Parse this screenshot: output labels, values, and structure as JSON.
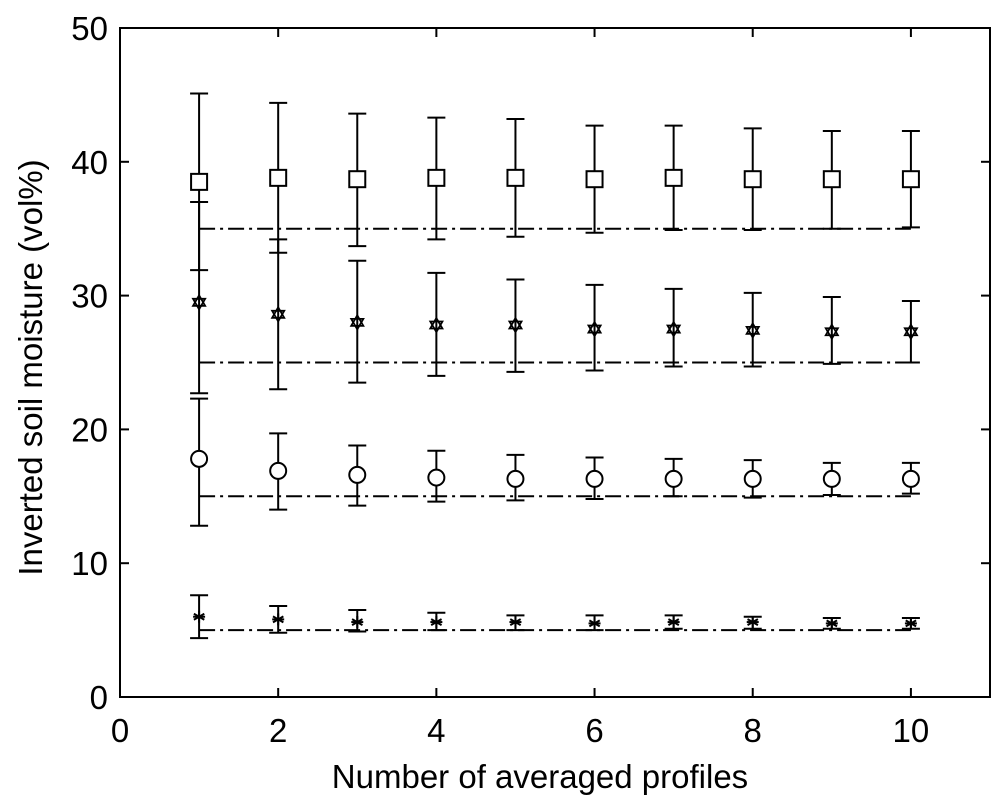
{
  "chart_data": {
    "type": "scatter",
    "title": "",
    "xlabel": "Number of averaged profiles",
    "ylabel": "Inverted soil moisture (vol%)",
    "xlim": [
      0,
      11
    ],
    "ylim": [
      0,
      50
    ],
    "xticks": [
      0,
      2,
      4,
      6,
      8,
      10
    ],
    "yticks": [
      0,
      10,
      20,
      30,
      40,
      50
    ],
    "grid": false,
    "legend": "none",
    "x": [
      1,
      2,
      3,
      4,
      5,
      6,
      7,
      8,
      9,
      10
    ],
    "series": [
      {
        "marker": "square",
        "values": [
          38.5,
          38.8,
          38.7,
          38.8,
          38.8,
          38.7,
          38.8,
          38.7,
          38.7,
          38.7
        ],
        "lower": [
          31.9,
          33.2,
          33.7,
          34.2,
          34.4,
          34.7,
          34.9,
          34.9,
          35.0,
          35.1
        ],
        "upper": [
          45.1,
          44.4,
          43.6,
          43.3,
          43.2,
          42.7,
          42.7,
          42.5,
          42.3,
          42.3
        ],
        "reference": 35
      },
      {
        "marker": "hexagram",
        "values": [
          29.5,
          28.6,
          28.0,
          27.8,
          27.8,
          27.5,
          27.5,
          27.4,
          27.3,
          27.3
        ],
        "lower": [
          22.7,
          23.0,
          23.5,
          24.0,
          24.3,
          24.4,
          24.7,
          24.7,
          24.9,
          25.0
        ],
        "upper": [
          37.0,
          34.2,
          32.6,
          31.7,
          31.2,
          30.8,
          30.5,
          30.2,
          29.9,
          29.6
        ],
        "reference": 25
      },
      {
        "marker": "circle",
        "values": [
          17.8,
          16.9,
          16.6,
          16.4,
          16.3,
          16.3,
          16.3,
          16.3,
          16.3,
          16.3
        ],
        "lower": [
          12.8,
          14.0,
          14.3,
          14.6,
          14.7,
          14.8,
          15.0,
          14.9,
          15.1,
          15.2
        ],
        "upper": [
          22.3,
          19.7,
          18.8,
          18.4,
          18.1,
          17.9,
          17.8,
          17.7,
          17.5,
          17.5
        ],
        "reference": 15
      },
      {
        "marker": "asterisk",
        "values": [
          6.0,
          5.8,
          5.6,
          5.6,
          5.6,
          5.5,
          5.6,
          5.6,
          5.5,
          5.5
        ],
        "lower": [
          4.4,
          4.8,
          4.9,
          5.0,
          5.0,
          5.0,
          5.1,
          5.1,
          5.1,
          5.1
        ],
        "upper": [
          7.6,
          6.8,
          6.5,
          6.3,
          6.1,
          6.1,
          6.1,
          6.0,
          5.9,
          5.9
        ],
        "reference": 5
      }
    ],
    "reference_line_x_range": [
      1,
      10
    ]
  }
}
